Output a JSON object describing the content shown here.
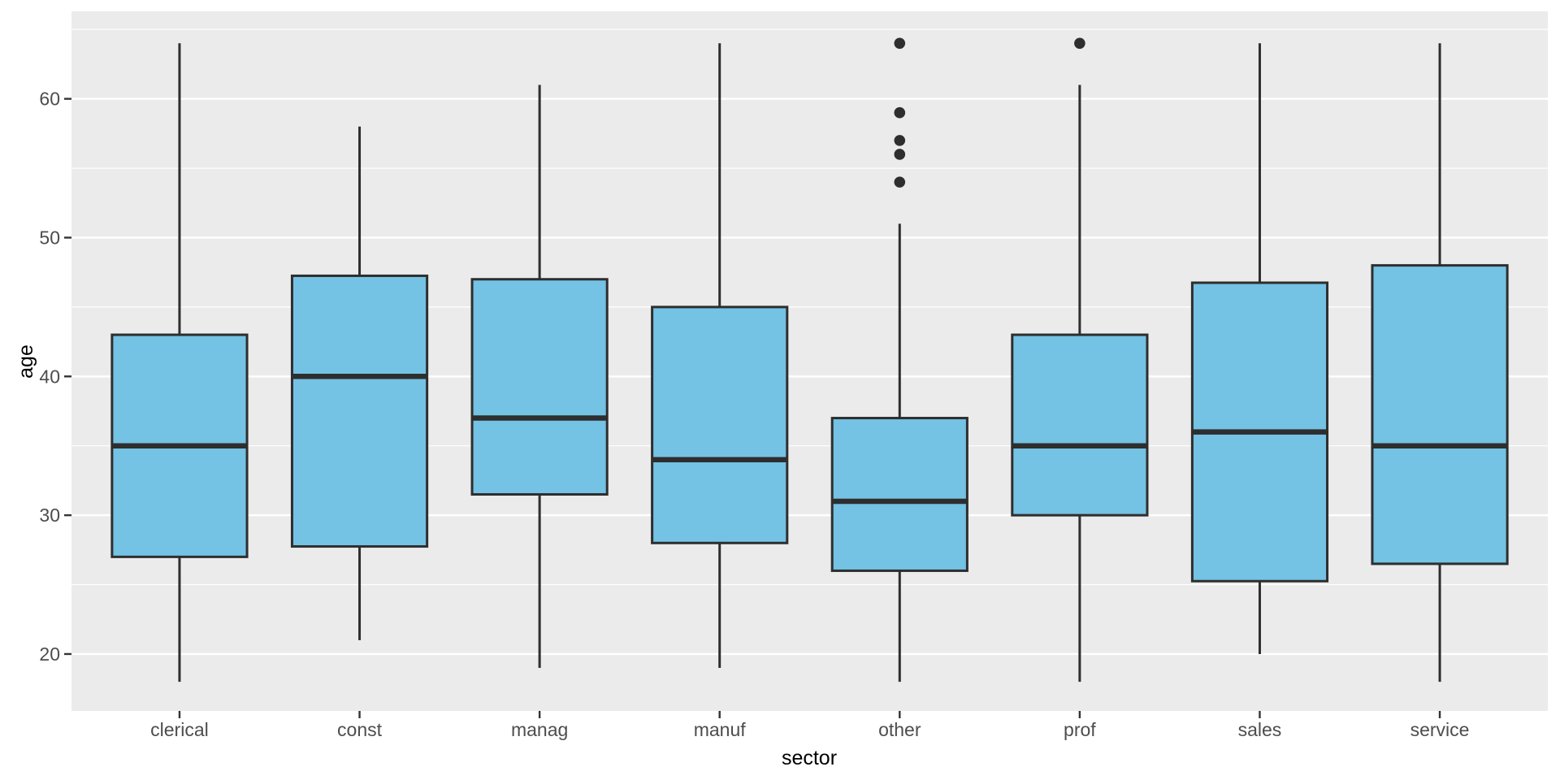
{
  "figure": {
    "background": "#FFFFFF",
    "panel_background": "#EBEBEB",
    "grid_major_color": "#FFFFFF",
    "grid_minor_color": "#FFFFFF",
    "tick_mark_color": "#333333",
    "tick_label_color": "#4D4D4D",
    "axis_title_color": "#000000"
  },
  "chart_data": {
    "type": "boxplot",
    "title": "",
    "xlabel": "sector",
    "ylabel": "age",
    "legend": "none",
    "grid": true,
    "ylim": [
      15.9,
      66.3
    ],
    "y_major_ticks": [
      20,
      30,
      40,
      50,
      60
    ],
    "y_minor_ticks": [
      25,
      35,
      45,
      55,
      65
    ],
    "y_tick_labels": [
      "20",
      "30",
      "40",
      "50",
      "60"
    ],
    "categories": [
      "clerical",
      "const",
      "manag",
      "manuf",
      "other",
      "prof",
      "sales",
      "service"
    ],
    "box_fill": "#74C2E4",
    "box_stroke": "#2E2E2E",
    "outlier_color": "#2E2E2E",
    "series": [
      {
        "sector": "clerical",
        "whisker_low": 18,
        "q1": 27,
        "median": 35,
        "q3": 43,
        "whisker_high": 64,
        "outliers": []
      },
      {
        "sector": "const",
        "whisker_low": 21,
        "q1": 27.75,
        "median": 40,
        "q3": 47.25,
        "whisker_high": 58,
        "outliers": []
      },
      {
        "sector": "manag",
        "whisker_low": 19,
        "q1": 31.5,
        "median": 37,
        "q3": 47,
        "whisker_high": 61,
        "outliers": []
      },
      {
        "sector": "manuf",
        "whisker_low": 19,
        "q1": 28,
        "median": 34,
        "q3": 45,
        "whisker_high": 64,
        "outliers": []
      },
      {
        "sector": "other",
        "whisker_low": 18,
        "q1": 26,
        "median": 31,
        "q3": 37,
        "whisker_high": 51,
        "outliers": [
          54,
          56,
          57,
          59,
          64
        ]
      },
      {
        "sector": "prof",
        "whisker_low": 18,
        "q1": 30,
        "median": 35,
        "q3": 43,
        "whisker_high": 61,
        "outliers": [
          64
        ]
      },
      {
        "sector": "sales",
        "whisker_low": 20,
        "q1": 25.25,
        "median": 36,
        "q3": 46.75,
        "whisker_high": 64,
        "outliers": []
      },
      {
        "sector": "service",
        "whisker_low": 18,
        "q1": 26.5,
        "median": 35,
        "q3": 48,
        "whisker_high": 64,
        "outliers": []
      }
    ]
  }
}
